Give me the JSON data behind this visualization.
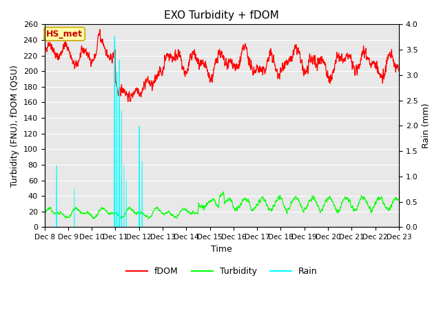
{
  "title": "EXO Turbidity + fDOM",
  "xlabel": "Time",
  "ylabel_left": "Turbidity (FNU), fDOM (QSU)",
  "ylabel_right": "Rain (mm)",
  "ylim_left": [
    0,
    260
  ],
  "ylim_right": [
    0,
    4.0
  ],
  "yticks_left": [
    0,
    20,
    40,
    60,
    80,
    100,
    120,
    140,
    160,
    180,
    200,
    220,
    240,
    260
  ],
  "yticks_right": [
    0.0,
    0.5,
    1.0,
    1.5,
    2.0,
    2.5,
    3.0,
    3.5,
    4.0
  ],
  "annotation_text": "HS_met",
  "annotation_bg": "#ffffaa",
  "annotation_border": "#ccaa00",
  "fdom_color": "#ff0000",
  "turbidity_color": "#00ff00",
  "rain_color": "#00ffff",
  "legend_labels": [
    "fDOM",
    "Turbidity",
    "Rain"
  ],
  "plot_bg_color": "#e8e8e8",
  "fig_bg_color": "#ffffff",
  "n_points": 2000,
  "seed": 42
}
